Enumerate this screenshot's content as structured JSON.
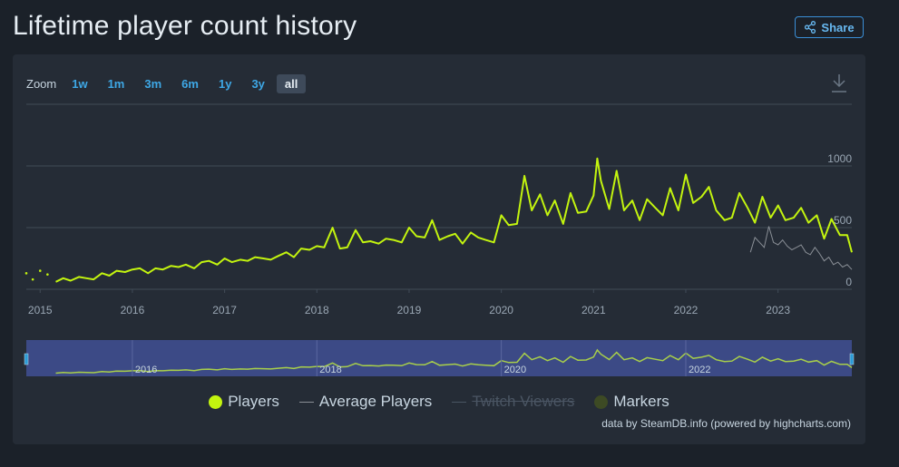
{
  "page": {
    "title": "Lifetime player count history"
  },
  "share": {
    "label": "Share"
  },
  "zoom": {
    "label": "Zoom",
    "options": [
      "1w",
      "1m",
      "3m",
      "6m",
      "1y",
      "3y",
      "all"
    ],
    "active": "all"
  },
  "legend": {
    "players": "Players",
    "average": "Average Players",
    "twitch": "Twitch Viewers",
    "markers": "Markers"
  },
  "credits": "data by SteamDB.info (powered by highcharts.com)",
  "colors": {
    "players": "#c3f40f",
    "average": "#8a8f96",
    "twitch": "#4a5563",
    "markers": "#3d4a24",
    "grid": "#414b57",
    "navigator_bg": "#3c4a86"
  },
  "chart_data": {
    "type": "line",
    "x_ticks": [
      "2015",
      "2016",
      "2017",
      "2018",
      "2019",
      "2020",
      "2021",
      "2022",
      "2023"
    ],
    "navigator_ticks": [
      "2016",
      "2018",
      "2020",
      "2022"
    ],
    "y_ticks": [
      "0",
      "500",
      "1000"
    ],
    "ylim": [
      0,
      1000
    ],
    "series": [
      {
        "name": "Players",
        "x": [
          2014.85,
          2014.92,
          2015.0,
          2015.08,
          2015.17,
          2015.25,
          2015.33,
          2015.42,
          2015.5,
          2015.58,
          2015.67,
          2015.75,
          2015.83,
          2015.92,
          2016.0,
          2016.08,
          2016.17,
          2016.25,
          2016.33,
          2016.42,
          2016.5,
          2016.58,
          2016.67,
          2016.75,
          2016.83,
          2016.92,
          2017.0,
          2017.08,
          2017.17,
          2017.25,
          2017.33,
          2017.42,
          2017.5,
          2017.58,
          2017.67,
          2017.75,
          2017.83,
          2017.92,
          2018.0,
          2018.08,
          2018.17,
          2018.25,
          2018.33,
          2018.42,
          2018.5,
          2018.58,
          2018.67,
          2018.75,
          2018.83,
          2018.92,
          2019.0,
          2019.08,
          2019.17,
          2019.25,
          2019.33,
          2019.42,
          2019.5,
          2019.58,
          2019.67,
          2019.75,
          2019.83,
          2019.92,
          2020.0,
          2020.08,
          2020.17,
          2020.25,
          2020.33,
          2020.42,
          2020.5,
          2020.58,
          2020.67,
          2020.75,
          2020.83,
          2020.92,
          2021.0,
          2021.04,
          2021.08,
          2021.17,
          2021.25,
          2021.33,
          2021.42,
          2021.5,
          2021.58,
          2021.67,
          2021.75,
          2021.83,
          2021.92,
          2022.0,
          2022.08,
          2022.17,
          2022.25,
          2022.33,
          2022.42,
          2022.5,
          2022.58,
          2022.67,
          2022.75,
          2022.83,
          2022.92,
          2023.0,
          2023.08,
          2023.17,
          2023.25,
          2023.33,
          2023.42,
          2023.5,
          2023.58,
          2023.67,
          2023.75,
          2023.8
        ],
        "values": [
          130,
          80,
          150,
          120,
          60,
          90,
          70,
          100,
          90,
          80,
          130,
          110,
          150,
          140,
          160,
          170,
          130,
          170,
          160,
          190,
          180,
          200,
          170,
          220,
          230,
          200,
          250,
          220,
          240,
          230,
          260,
          250,
          240,
          270,
          300,
          260,
          330,
          320,
          350,
          340,
          500,
          330,
          340,
          480,
          380,
          390,
          370,
          410,
          400,
          380,
          500,
          430,
          420,
          560,
          400,
          430,
          450,
          370,
          460,
          420,
          400,
          380,
          600,
          520,
          530,
          920,
          640,
          770,
          600,
          720,
          530,
          780,
          620,
          630,
          760,
          1060,
          880,
          650,
          960,
          640,
          720,
          560,
          730,
          660,
          600,
          820,
          640,
          930,
          700,
          750,
          830,
          640,
          560,
          580,
          780,
          660,
          540,
          750,
          580,
          680,
          560,
          580,
          660,
          540,
          600,
          410,
          570,
          440,
          440,
          300
        ]
      },
      {
        "name": "Average Players",
        "x": [
          2022.7,
          2022.75,
          2022.8,
          2022.85,
          2022.9,
          2022.95,
          2023.0,
          2023.05,
          2023.1,
          2023.15,
          2023.2,
          2023.25,
          2023.3,
          2023.35,
          2023.4,
          2023.45,
          2023.5,
          2023.55,
          2023.6,
          2023.65,
          2023.7,
          2023.75,
          2023.8
        ],
        "values": [
          300,
          420,
          380,
          340,
          510,
          380,
          360,
          400,
          350,
          320,
          340,
          360,
          300,
          280,
          340,
          290,
          230,
          260,
          200,
          220,
          180,
          200,
          160
        ]
      }
    ]
  }
}
